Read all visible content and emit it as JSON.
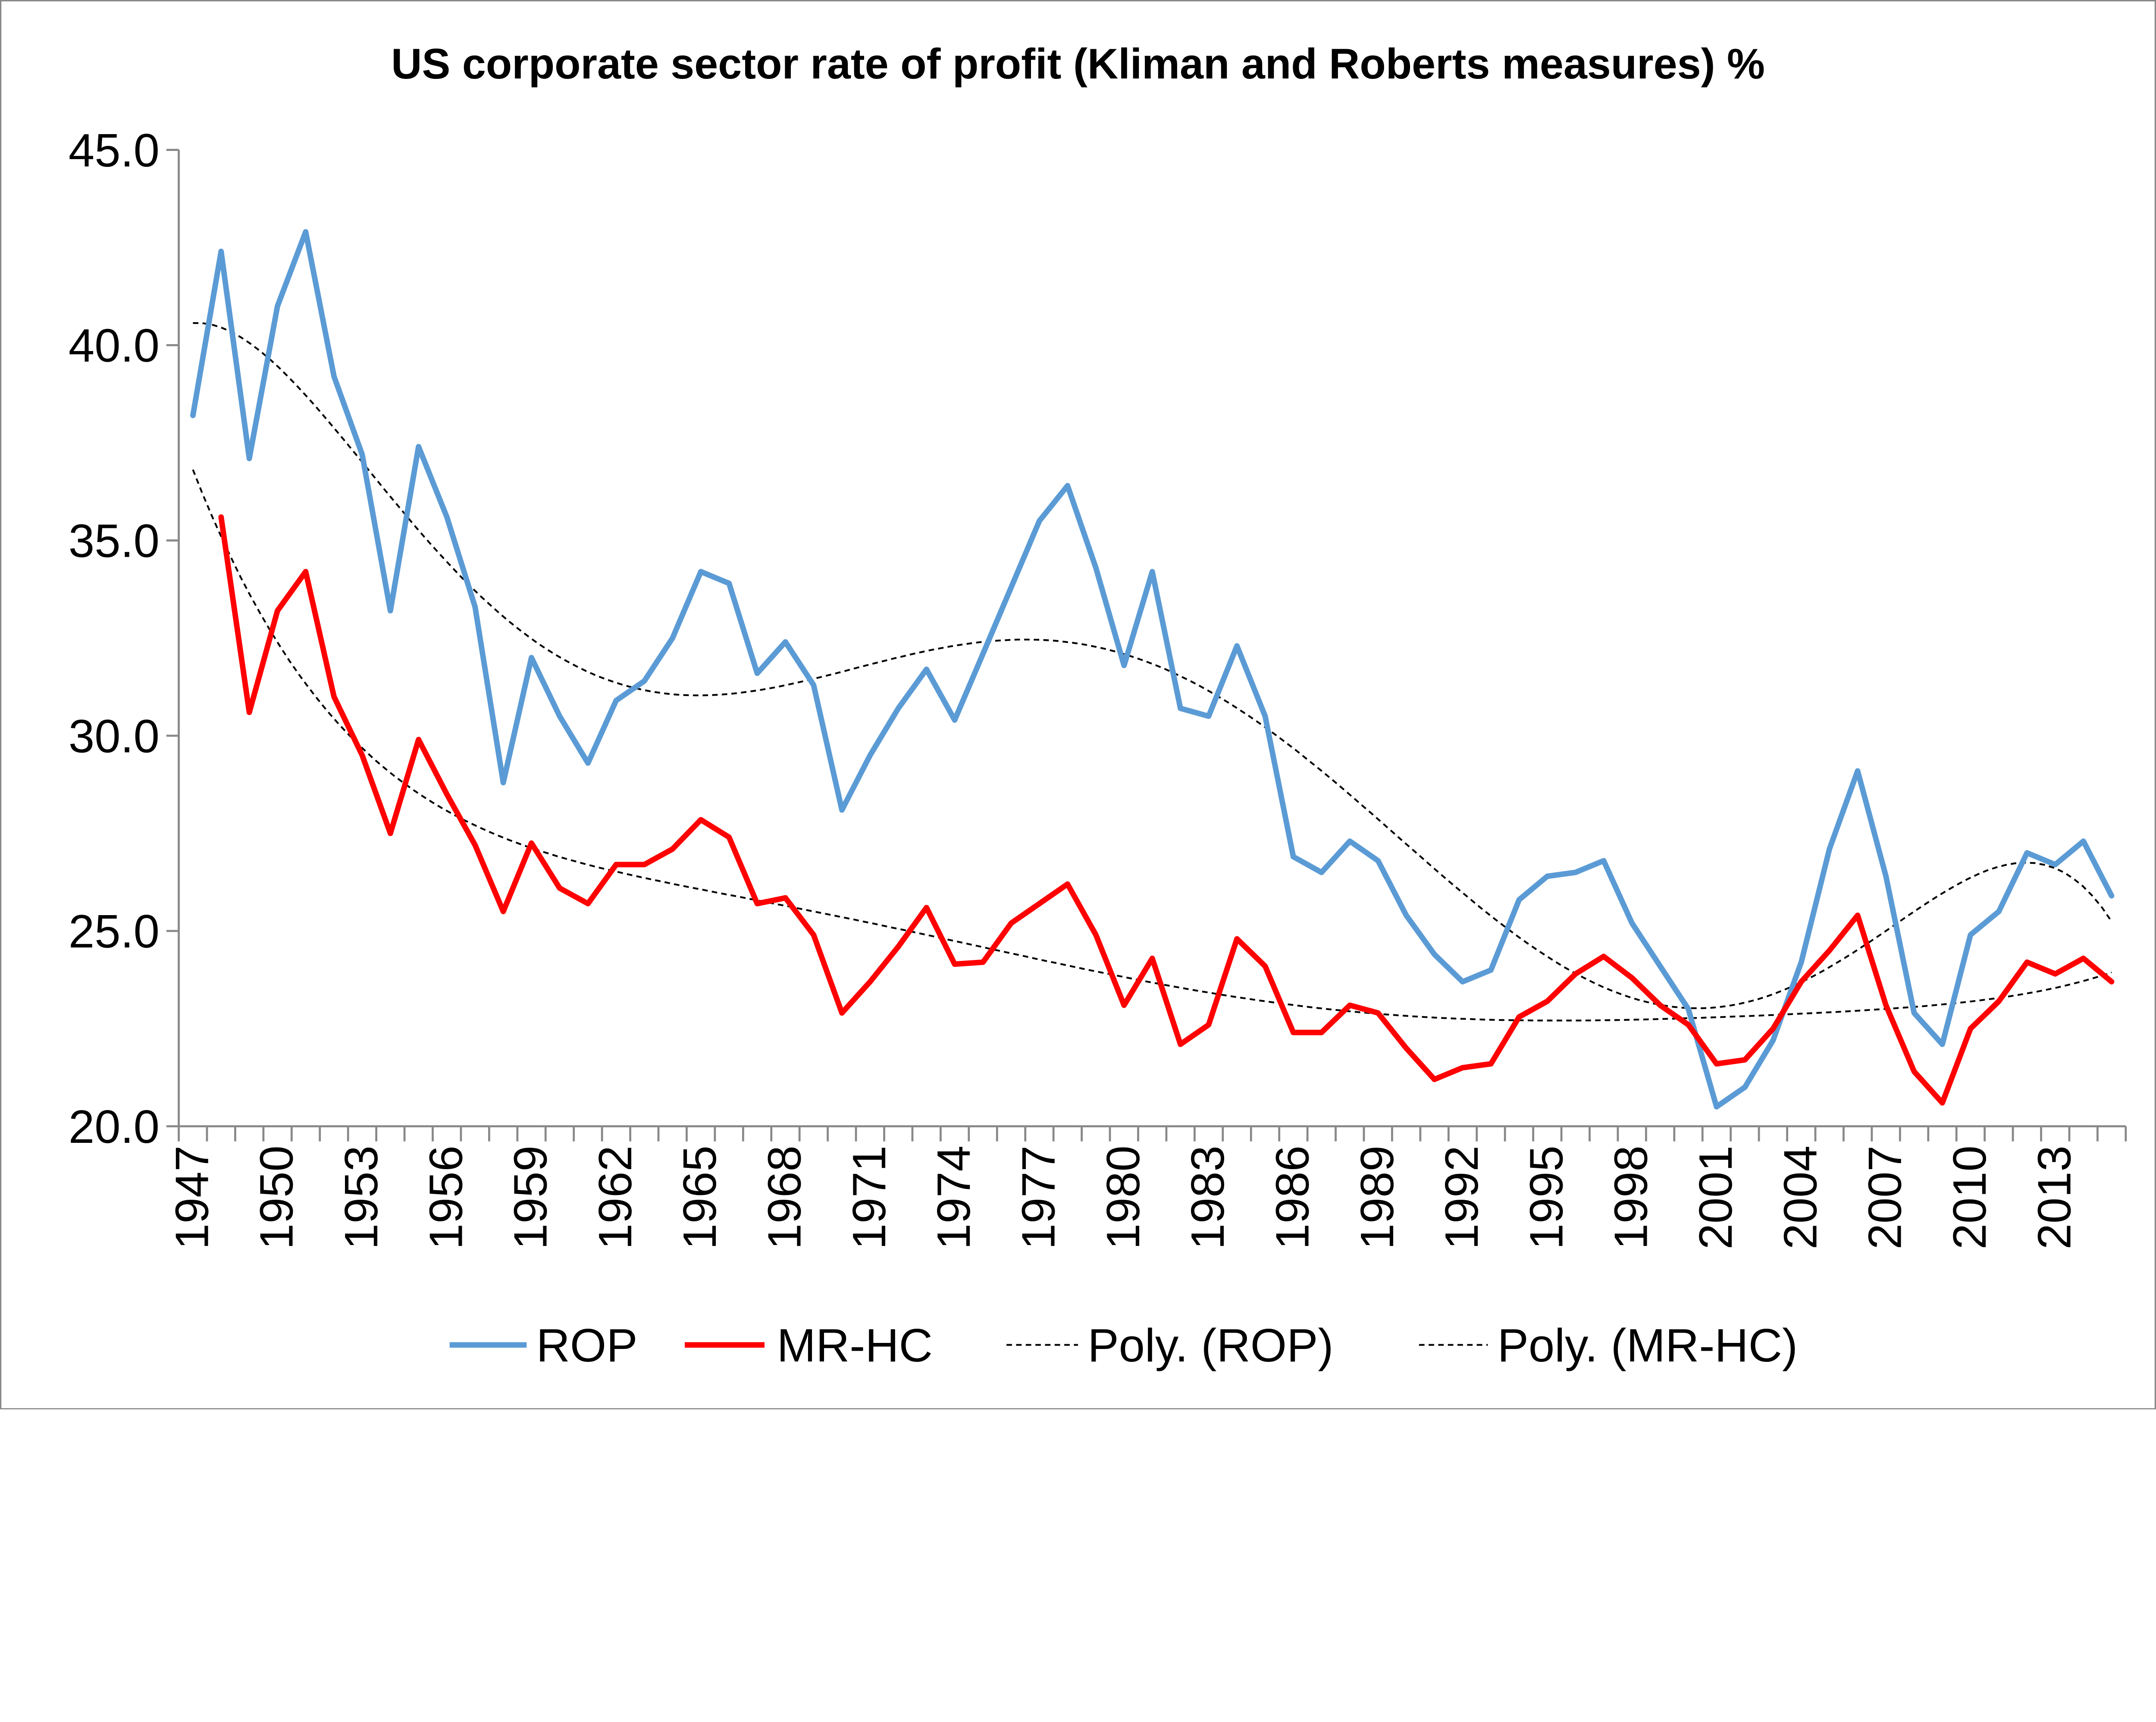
{
  "chart_data": {
    "type": "line",
    "title": "US corporate sector rate of profit (Kliman and Roberts measures) %",
    "xlabel": "",
    "ylabel": "",
    "x": [
      1947,
      1948,
      1949,
      1950,
      1951,
      1952,
      1953,
      1954,
      1955,
      1956,
      1957,
      1958,
      1959,
      1960,
      1961,
      1962,
      1963,
      1964,
      1965,
      1966,
      1967,
      1968,
      1969,
      1970,
      1971,
      1972,
      1973,
      1974,
      1975,
      1976,
      1977,
      1978,
      1979,
      1980,
      1981,
      1982,
      1983,
      1984,
      1985,
      1986,
      1987,
      1988,
      1989,
      1990,
      1991,
      1992,
      1993,
      1994,
      1995,
      1996,
      1997,
      1998,
      1999,
      2000,
      2001,
      2002,
      2003,
      2004,
      2005,
      2006,
      2007,
      2008,
      2009,
      2010,
      2011,
      2012,
      2013,
      2014,
      2015
    ],
    "x_tick_labels": [
      "1947",
      "1950",
      "1953",
      "1956",
      "1959",
      "1962",
      "1965",
      "1968",
      "1971",
      "1974",
      "1977",
      "1980",
      "1983",
      "1986",
      "1989",
      "1992",
      "1995",
      "1998",
      "2001",
      "2004",
      "2007",
      "2010",
      "2013"
    ],
    "y_tick_labels": [
      "20.0",
      "25.0",
      "30.0",
      "35.0",
      "40.0",
      "45.0"
    ],
    "ylim": [
      20,
      45
    ],
    "y_ticks": [
      20,
      25,
      30,
      35,
      40,
      45
    ],
    "grid": false,
    "legend_position": "bottom",
    "series": [
      {
        "name": "ROP",
        "color": "#5B9BD5",
        "values": [
          38.2,
          42.4,
          37.1,
          41.0,
          42.9,
          39.2,
          37.2,
          33.2,
          37.4,
          35.6,
          33.3,
          28.8,
          32.0,
          30.5,
          29.3,
          30.9,
          31.4,
          32.5,
          34.2,
          33.9,
          31.6,
          32.4,
          31.3,
          28.1,
          29.5,
          30.7,
          31.7,
          30.4,
          32.1,
          33.8,
          35.5,
          36.4,
          34.3,
          31.8,
          34.2,
          30.7,
          30.5,
          32.3,
          30.5,
          26.9,
          26.5,
          27.3,
          26.8,
          25.4,
          24.4,
          23.7,
          24.0,
          25.8,
          26.4,
          26.5,
          26.8,
          25.2,
          24.1,
          23.0,
          20.5,
          21.0,
          22.2,
          24.2,
          27.1,
          29.1,
          26.4,
          22.9,
          22.1,
          24.9,
          25.5,
          27.0,
          26.7,
          27.3,
          25.9
        ]
      },
      {
        "name": "MR-HC",
        "color": "#FF0000",
        "values": [
          null,
          35.6,
          30.6,
          33.2,
          34.2,
          31.0,
          29.5,
          27.5,
          29.9,
          28.5,
          27.2,
          25.5,
          27.25,
          26.1,
          25.7,
          26.7,
          26.7,
          27.1,
          27.85,
          27.4,
          25.7,
          25.85,
          24.9,
          22.9,
          23.7,
          24.6,
          25.6,
          24.15,
          24.2,
          25.2,
          25.7,
          26.2,
          24.9,
          23.1,
          24.3,
          22.1,
          22.6,
          24.8,
          24.1,
          22.4,
          22.4,
          23.1,
          22.9,
          22.0,
          21.2,
          21.5,
          21.6,
          22.8,
          23.2,
          23.9,
          24.35,
          23.8,
          23.1,
          22.6,
          21.6,
          21.7,
          22.5,
          23.7,
          24.5,
          25.4,
          23.1,
          21.4,
          20.6,
          22.5,
          23.2,
          24.2,
          23.9,
          24.3,
          23.7
        ]
      }
    ],
    "trendlines": [
      {
        "name": "Poly. (ROP)",
        "of": "ROP",
        "kind": "polynomial",
        "color": "#000000"
      },
      {
        "name": "Poly. (MR-HC)",
        "of": "MR-HC",
        "kind": "polynomial",
        "color": "#000000"
      }
    ]
  }
}
